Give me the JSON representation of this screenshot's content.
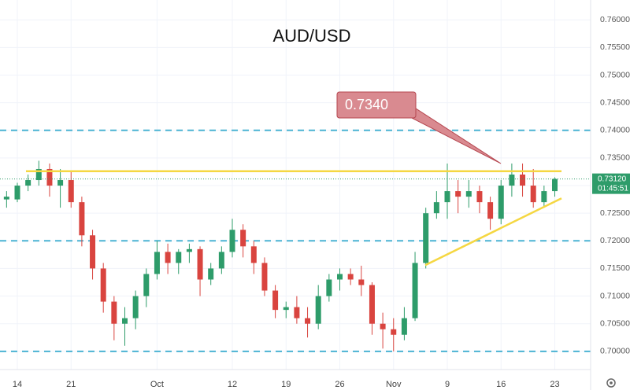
{
  "chart_data": {
    "type": "candlestick",
    "title": "AUD/USD",
    "categories": [
      null,
      "14",
      null,
      null,
      null,
      null,
      "21",
      null,
      null,
      null,
      null,
      null,
      null,
      null,
      "Oct",
      null,
      null,
      null,
      null,
      null,
      null,
      "12",
      null,
      null,
      null,
      null,
      "19",
      null,
      null,
      null,
      null,
      "26",
      null,
      null,
      null,
      null,
      "Nov",
      null,
      null,
      null,
      null,
      "9",
      null,
      null,
      null,
      null,
      "16",
      null,
      null,
      null,
      null,
      "23"
    ],
    "open": [
      0.7275,
      0.7275,
      0.73,
      0.731,
      0.733,
      0.73,
      0.731,
      0.727,
      0.721,
      0.715,
      0.709,
      0.705,
      0.706,
      0.71,
      0.714,
      0.718,
      0.716,
      0.718,
      0.7185,
      0.713,
      0.715,
      0.718,
      0.722,
      0.719,
      0.716,
      0.711,
      0.7075,
      0.708,
      0.706,
      0.705,
      0.71,
      0.713,
      0.714,
      0.713,
      0.712,
      0.705,
      0.704,
      0.703,
      0.706,
      0.716,
      0.725,
      0.727,
      0.729,
      0.728,
      0.729,
      0.727,
      0.724,
      0.73,
      0.732,
      0.73,
      0.727,
      0.729
    ],
    "high": [
      0.729,
      0.7305,
      0.732,
      0.7345,
      0.734,
      0.733,
      0.7325,
      0.728,
      0.722,
      0.716,
      0.71,
      0.708,
      0.711,
      0.715,
      0.72,
      0.7195,
      0.7185,
      0.7195,
      0.719,
      0.716,
      0.719,
      0.724,
      0.723,
      0.72,
      0.717,
      0.712,
      0.709,
      0.71,
      0.708,
      0.712,
      0.714,
      0.715,
      0.715,
      0.7155,
      0.7125,
      0.707,
      0.706,
      0.708,
      0.718,
      0.726,
      0.729,
      0.734,
      0.731,
      0.731,
      0.73,
      0.728,
      0.731,
      0.734,
      0.734,
      0.733,
      0.73,
      0.7315
    ],
    "low": [
      0.726,
      0.727,
      0.729,
      0.73,
      0.728,
      0.726,
      0.726,
      0.719,
      0.713,
      0.707,
      0.702,
      0.701,
      0.704,
      0.708,
      0.713,
      0.714,
      0.714,
      0.716,
      0.71,
      0.712,
      0.714,
      0.717,
      0.717,
      0.714,
      0.71,
      0.706,
      0.706,
      0.705,
      0.7025,
      0.704,
      0.709,
      0.711,
      0.712,
      0.71,
      0.703,
      0.7005,
      0.7,
      0.702,
      0.7055,
      0.715,
      0.724,
      0.724,
      0.725,
      0.726,
      0.725,
      0.722,
      0.723,
      0.728,
      0.728,
      0.726,
      0.726,
      0.728
    ],
    "close": [
      0.728,
      0.73,
      0.731,
      0.733,
      0.73,
      0.731,
      0.727,
      0.721,
      0.715,
      0.709,
      0.705,
      0.706,
      0.71,
      0.714,
      0.718,
      0.716,
      0.718,
      0.7185,
      0.713,
      0.715,
      0.718,
      0.722,
      0.719,
      0.716,
      0.711,
      0.7075,
      0.708,
      0.706,
      0.705,
      0.71,
      0.713,
      0.714,
      0.713,
      0.712,
      0.705,
      0.704,
      0.703,
      0.706,
      0.716,
      0.725,
      0.727,
      0.729,
      0.728,
      0.729,
      0.727,
      0.724,
      0.73,
      0.732,
      0.73,
      0.727,
      0.729,
      0.7312
    ],
    "up_color": "#2e9c6a",
    "down_color": "#d9443f",
    "ylim": [
      0.6967,
      0.7636
    ],
    "yticks": [
      {
        "value": 0.7,
        "label": "0.70000"
      },
      {
        "value": 0.705,
        "label": "0.70500"
      },
      {
        "value": 0.71,
        "label": "0.71000"
      },
      {
        "value": 0.715,
        "label": "0.71500"
      },
      {
        "value": 0.72,
        "label": "0.72000"
      },
      {
        "value": 0.725,
        "label": "0.72500"
      },
      {
        "value": 0.73,
        "label": "0.73000"
      },
      {
        "value": 0.735,
        "label": "0.73500"
      },
      {
        "value": 0.74,
        "label": "0.74000"
      },
      {
        "value": 0.745,
        "label": "0.74500"
      },
      {
        "value": 0.75,
        "label": "0.75000"
      },
      {
        "value": 0.755,
        "label": "0.75500"
      },
      {
        "value": 0.76,
        "label": "0.76000"
      }
    ],
    "grid": true,
    "levels": [
      0.74,
      0.72,
      0.7
    ],
    "level_color": "#4bb3d3",
    "resistance": 0.7326,
    "trend_line": [
      0.7156,
      0.7277
    ],
    "line_color": "#f5d742",
    "annotation": {
      "value": 0.734,
      "label": "0.7340"
    },
    "last_price": {
      "value": 0.7312,
      "label": "0.73120"
    },
    "countdown": "01:45:51"
  }
}
